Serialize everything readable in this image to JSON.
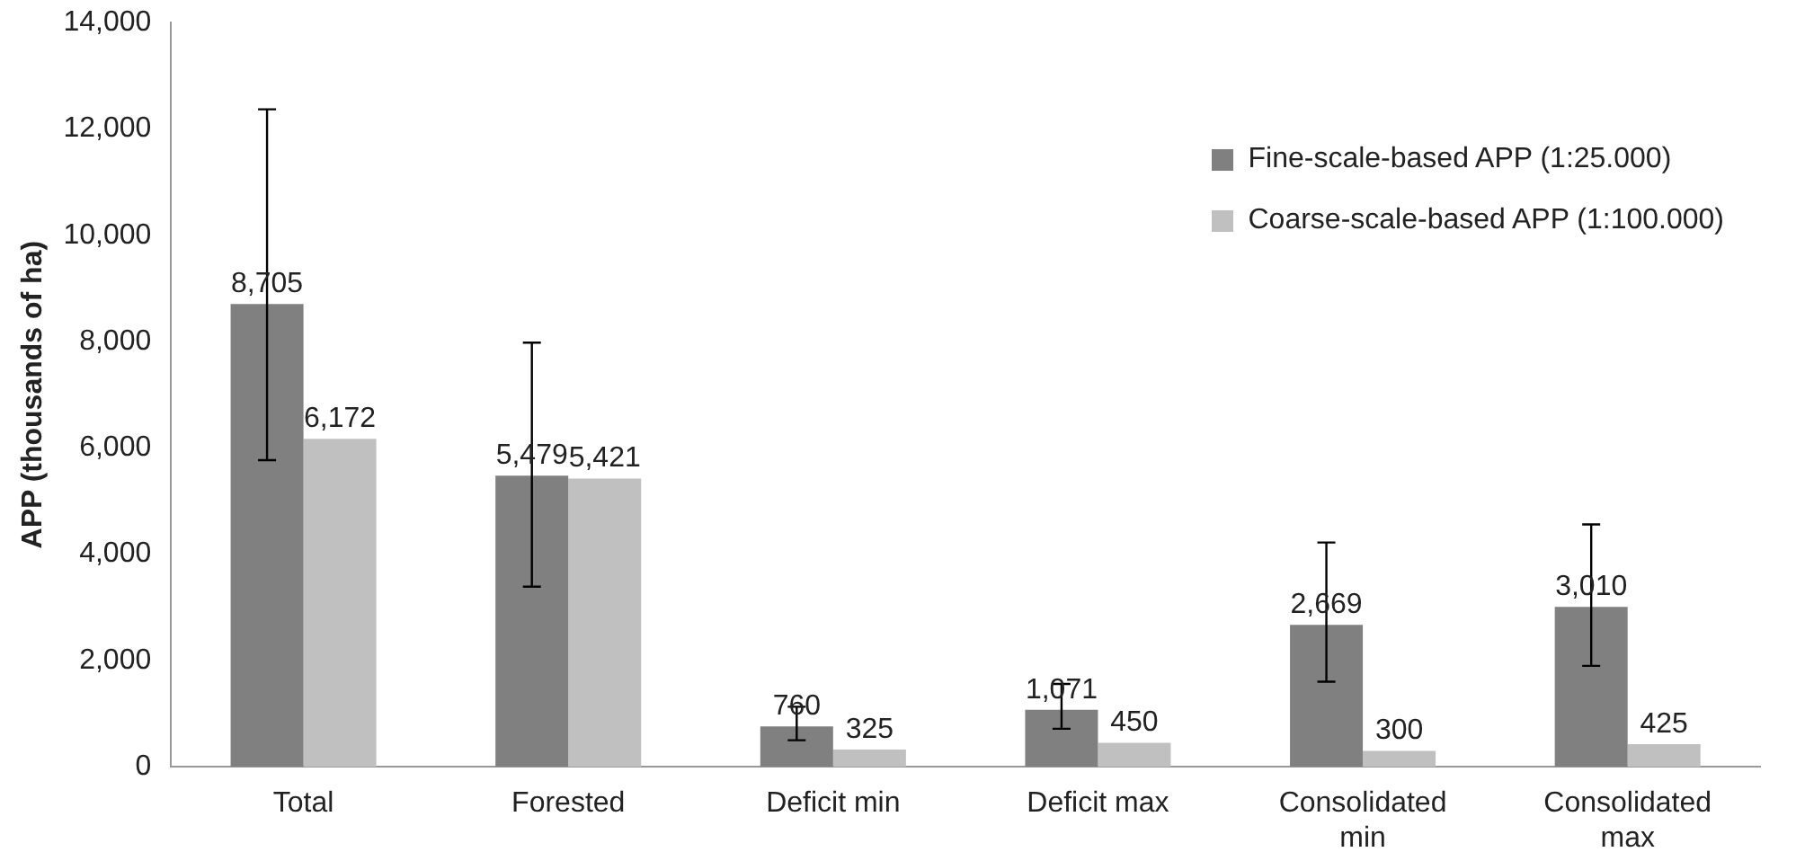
{
  "chart_data": {
    "type": "bar",
    "ylabel": "APP (thousands of ha)",
    "categories": [
      "Total",
      "Forested",
      "Deficit min",
      "Deficit max",
      "Consolidated min",
      "Consolidated max"
    ],
    "series": [
      {
        "name": "Fine-scale-based APP (1:25.000)",
        "color": "#808080",
        "values": [
          8705,
          5479,
          760,
          1071,
          2669,
          3010
        ],
        "value_labels": [
          "8,705",
          "5,479",
          "760",
          "1,071",
          "2,669",
          "3,010"
        ],
        "errors": [
          [
            5770,
            12370
          ],
          [
            3390,
            7980
          ],
          [
            500,
            1130
          ],
          [
            715,
            1560
          ],
          [
            1600,
            4220
          ],
          [
            1900,
            4560
          ]
        ]
      },
      {
        "name": "Coarse-scale-based APP (1:100.000)",
        "color": "#c0c0c0",
        "values": [
          6172,
          5421,
          325,
          450,
          300,
          425
        ],
        "value_labels": [
          "6,172",
          "5,421",
          "325",
          "450",
          "300",
          "425"
        ]
      }
    ],
    "ylim": [
      0,
      14000
    ],
    "yticks": [
      {
        "value": 0,
        "label": "0"
      },
      {
        "value": 2000,
        "label": "2,000"
      },
      {
        "value": 4000,
        "label": "4,000"
      },
      {
        "value": 6000,
        "label": "6,000"
      },
      {
        "value": 8000,
        "label": "8,000"
      },
      {
        "value": 10000,
        "label": "10,000"
      },
      {
        "value": 12000,
        "label": "12,000"
      },
      {
        "value": 14000,
        "label": "14,000"
      }
    ],
    "grid": false,
    "legend": "top right"
  }
}
